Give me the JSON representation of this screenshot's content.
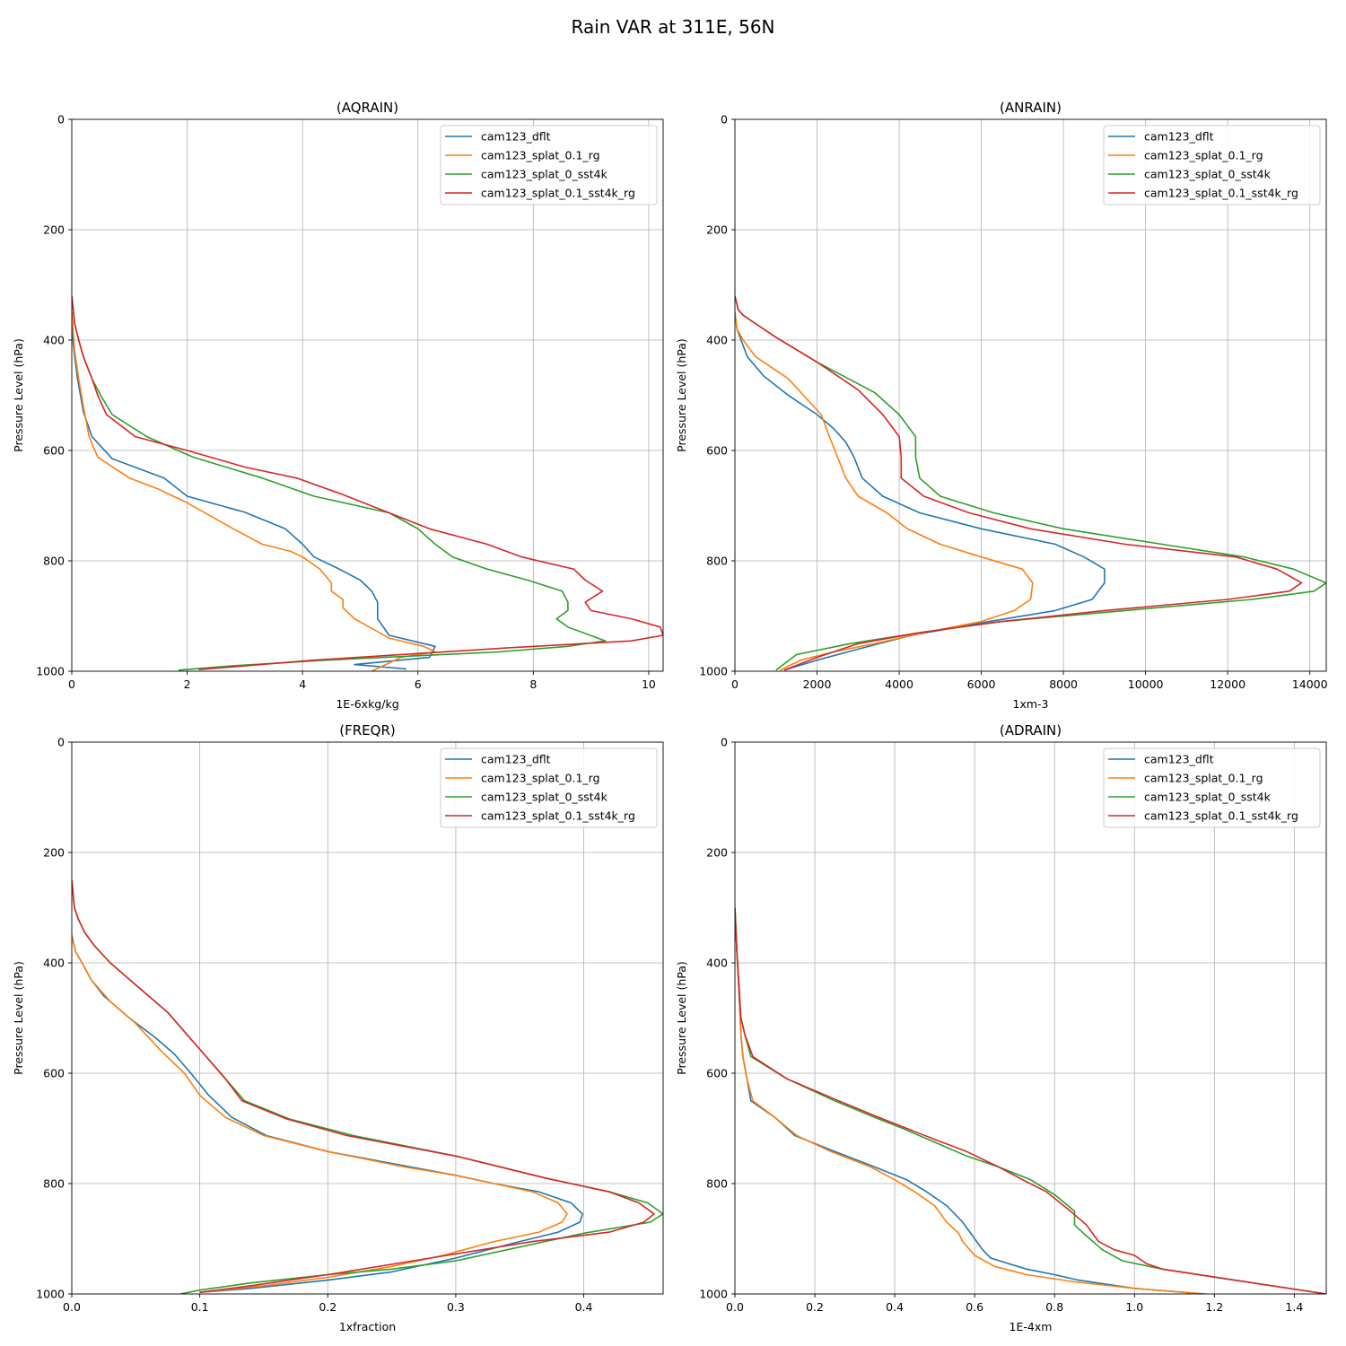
{
  "figure_title": "Rain VAR at 311E, 56N",
  "colors": {
    "cam123_dflt": "#1f77b4",
    "cam123_splat_0.1_rg": "#ff7f0e",
    "cam123_splat_0_sst4k": "#2ca02c",
    "cam123_splat_0.1_sst4k_rg": "#d62728"
  },
  "chart_data": [
    {
      "type": "line",
      "title": "(AQRAIN)",
      "xlabel": "1E-6xkg/kg",
      "ylabel": "Pressure Level (hPa)",
      "xlim": [
        0,
        10.25
      ],
      "ylim": [
        1000,
        0
      ],
      "xticks": [
        0,
        2,
        4,
        6,
        8,
        10
      ],
      "xtick_labels": [
        "0",
        "2",
        "4",
        "6",
        "8",
        "10"
      ],
      "yticks": [
        0,
        200,
        400,
        600,
        800,
        1000
      ],
      "ytick_labels": [
        "0",
        "200",
        "400",
        "600",
        "800",
        "1000"
      ],
      "grid": true,
      "legend_loc": "upper right",
      "series": [
        {
          "name": "cam123_dflt",
          "x": [
            0,
            0.02,
            0.05,
            0.1,
            0.2,
            0.35,
            0.7,
            1.6,
            2.0,
            3.0,
            3.7,
            4.0,
            4.2,
            4.6,
            5.0,
            5.2,
            5.3,
            5.3,
            5.5,
            6.3,
            6.2,
            4.9,
            5.8
          ],
          "y": [
            350,
            400,
            430,
            470,
            530,
            575,
            615,
            650,
            683,
            712,
            742,
            770,
            793,
            813,
            835,
            855,
            875,
            905,
            935,
            955,
            975,
            988,
            996
          ]
        },
        {
          "name": "cam123_splat_0.1_rg",
          "x": [
            0,
            0.05,
            0.12,
            0.2,
            0.3,
            0.45,
            1.0,
            1.5,
            2.0,
            2.8,
            3.3,
            3.8,
            4.0,
            4.3,
            4.5,
            4.5,
            4.7,
            4.7,
            4.9,
            5.5,
            6.1,
            6.3,
            5.7,
            5.2
          ],
          "y": [
            350,
            420,
            470,
            520,
            575,
            612,
            650,
            670,
            695,
            742,
            770,
            783,
            793,
            815,
            840,
            855,
            870,
            885,
            905,
            940,
            955,
            965,
            975,
            1000
          ]
        },
        {
          "name": "cam123_splat_0_sst4k",
          "x": [
            0,
            0.05,
            0.12,
            0.2,
            0.35,
            0.5,
            0.7,
            1.3,
            2.1,
            3.3,
            4.2,
            5.5,
            6.0,
            6.3,
            6.6,
            7.2,
            7.9,
            8.5,
            8.6,
            8.6,
            8.4,
            8.6,
            9.25,
            8.6,
            7.4,
            4.4,
            2.8,
            1.85
          ],
          "y": [
            320,
            370,
            400,
            430,
            470,
            500,
            535,
            575,
            612,
            650,
            683,
            713,
            742,
            770,
            793,
            815,
            835,
            855,
            875,
            890,
            905,
            920,
            945,
            955,
            965,
            980,
            990,
            998
          ]
        },
        {
          "name": "cam123_splat_0.1_sst4k_rg",
          "x": [
            0,
            0.05,
            0.12,
            0.2,
            0.35,
            0.45,
            0.6,
            1.1,
            2.0,
            3.0,
            3.9,
            4.7,
            5.5,
            6.2,
            7.2,
            7.8,
            8.7,
            8.9,
            9.2,
            8.9,
            9.0,
            9.7,
            10.2,
            10.25,
            9.7,
            7.5,
            4.2,
            2.2
          ],
          "y": [
            320,
            370,
            400,
            430,
            470,
            500,
            535,
            575,
            600,
            630,
            650,
            680,
            713,
            742,
            770,
            793,
            815,
            835,
            855,
            875,
            890,
            905,
            920,
            935,
            945,
            958,
            980,
            997
          ]
        }
      ]
    },
    {
      "type": "line",
      "title": "(ANRAIN)",
      "xlabel": "1xm-3",
      "ylabel": "Pressure Level (hPa)",
      "xlim": [
        0,
        14400
      ],
      "ylim": [
        1000,
        0
      ],
      "xticks": [
        0,
        2000,
        4000,
        6000,
        8000,
        10000,
        12000,
        14000
      ],
      "xtick_labels": [
        "0",
        "2000",
        "4000",
        "6000",
        "8000",
        "10000",
        "12000",
        "14000"
      ],
      "yticks": [
        0,
        200,
        400,
        600,
        800,
        1000
      ],
      "ytick_labels": [
        "0",
        "200",
        "400",
        "600",
        "800",
        "1000"
      ],
      "grid": true,
      "legend_loc": "upper right",
      "series": [
        {
          "name": "cam123_dflt",
          "x": [
            0,
            50,
            300,
            700,
            1300,
            2000,
            2400,
            2700,
            2900,
            3100,
            3600,
            4500,
            6000,
            7800,
            8500,
            9000,
            9000,
            8700,
            7800,
            6200,
            4300,
            3000,
            2000,
            1200
          ],
          "y": [
            350,
            380,
            430,
            465,
            500,
            535,
            560,
            585,
            612,
            650,
            683,
            713,
            742,
            770,
            793,
            815,
            840,
            870,
            890,
            910,
            935,
            960,
            980,
            998
          ]
        },
        {
          "name": "cam123_splat_0.1_rg",
          "x": [
            0,
            50,
            200,
            500,
            1300,
            2100,
            2300,
            2500,
            2700,
            3000,
            3700,
            4200,
            5000,
            6000,
            7000,
            7250,
            7200,
            6800,
            6000,
            4600,
            3400,
            2400,
            1600,
            1100
          ],
          "y": [
            350,
            380,
            400,
            430,
            470,
            535,
            575,
            612,
            650,
            683,
            713,
            742,
            770,
            793,
            815,
            840,
            870,
            890,
            910,
            930,
            950,
            965,
            980,
            998
          ]
        },
        {
          "name": "cam123_splat_0_sst4k",
          "x": [
            0,
            80,
            200,
            500,
            1000,
            2000,
            3400,
            4000,
            4400,
            4400,
            4500,
            5000,
            6300,
            8000,
            10400,
            12400,
            13600,
            14400,
            14100,
            12600,
            9500,
            6500,
            4500,
            2800,
            1500,
            1000
          ],
          "y": [
            320,
            345,
            355,
            370,
            395,
            440,
            495,
            535,
            575,
            612,
            650,
            683,
            713,
            742,
            770,
            793,
            815,
            840,
            855,
            870,
            890,
            910,
            930,
            950,
            970,
            998
          ]
        },
        {
          "name": "cam123_splat_0.1_sst4k_rg",
          "x": [
            0,
            80,
            200,
            500,
            1000,
            2000,
            3000,
            3600,
            4000,
            4050,
            4050,
            4600,
            5700,
            7200,
            9500,
            12200,
            13200,
            13800,
            13500,
            12000,
            9000,
            6500,
            4500,
            3000,
            2000,
            1200
          ],
          "y": [
            320,
            345,
            355,
            370,
            395,
            440,
            490,
            535,
            575,
            612,
            650,
            683,
            713,
            742,
            770,
            793,
            815,
            840,
            855,
            870,
            890,
            910,
            930,
            950,
            975,
            998
          ]
        }
      ]
    },
    {
      "type": "line",
      "title": "(FREQR)",
      "xlabel": "1xfraction",
      "ylabel": "Pressure Level (hPa)",
      "xlim": [
        0,
        0.462
      ],
      "ylim": [
        1000,
        0
      ],
      "xticks": [
        0,
        0.1,
        0.2,
        0.3,
        0.4
      ],
      "xtick_labels": [
        "0.0",
        "0.1",
        "0.2",
        "0.3",
        "0.4"
      ],
      "yticks": [
        0,
        200,
        400,
        600,
        800,
        1000
      ],
      "ytick_labels": [
        "0",
        "200",
        "400",
        "600",
        "800",
        "1000"
      ],
      "grid": true,
      "legend_loc": "upper right",
      "series": [
        {
          "name": "cam123_dflt",
          "x": [
            0,
            0.003,
            0.008,
            0.015,
            0.025,
            0.045,
            0.065,
            0.08,
            0.093,
            0.107,
            0.125,
            0.152,
            0.2,
            0.265,
            0.3,
            0.33,
            0.365,
            0.39,
            0.399,
            0.397,
            0.38,
            0.35,
            0.3,
            0.25,
            0.2,
            0.14,
            0.1
          ],
          "y": [
            350,
            380,
            400,
            430,
            460,
            500,
            535,
            565,
            600,
            640,
            680,
            713,
            742,
            770,
            785,
            800,
            815,
            835,
            855,
            870,
            888,
            905,
            935,
            960,
            975,
            990,
            997
          ]
        },
        {
          "name": "cam123_splat_0.1_rg",
          "x": [
            0,
            0.003,
            0.008,
            0.015,
            0.03,
            0.05,
            0.07,
            0.088,
            0.1,
            0.12,
            0.15,
            0.2,
            0.26,
            0.3,
            0.33,
            0.36,
            0.38,
            0.387,
            0.383,
            0.365,
            0.33,
            0.29,
            0.25,
            0.2,
            0.15,
            0.1
          ],
          "y": [
            350,
            380,
            400,
            430,
            470,
            510,
            560,
            600,
            640,
            680,
            713,
            742,
            770,
            785,
            800,
            815,
            835,
            855,
            870,
            888,
            905,
            930,
            950,
            970,
            985,
            997
          ]
        },
        {
          "name": "cam123_splat_0_sst4k",
          "x": [
            0,
            0.002,
            0.005,
            0.01,
            0.018,
            0.03,
            0.05,
            0.075,
            0.09,
            0.105,
            0.12,
            0.135,
            0.17,
            0.22,
            0.3,
            0.37,
            0.42,
            0.45,
            0.462,
            0.452,
            0.4,
            0.3,
            0.25,
            0.2,
            0.14,
            0.1,
            0.085
          ],
          "y": [
            250,
            300,
            320,
            345,
            370,
            400,
            440,
            490,
            530,
            570,
            610,
            650,
            683,
            713,
            750,
            790,
            815,
            835,
            855,
            870,
            890,
            940,
            955,
            965,
            980,
            993,
            1000
          ]
        },
        {
          "name": "cam123_splat_0.1_sst4k_rg",
          "x": [
            0,
            0.002,
            0.005,
            0.01,
            0.018,
            0.03,
            0.05,
            0.075,
            0.09,
            0.105,
            0.12,
            0.133,
            0.168,
            0.215,
            0.3,
            0.37,
            0.42,
            0.443,
            0.455,
            0.447,
            0.42,
            0.36,
            0.28,
            0.2,
            0.14,
            0.1
          ],
          "y": [
            250,
            300,
            320,
            345,
            370,
            400,
            440,
            490,
            530,
            570,
            610,
            650,
            683,
            713,
            750,
            790,
            815,
            835,
            855,
            870,
            888,
            905,
            935,
            965,
            985,
            997
          ]
        }
      ]
    },
    {
      "type": "line",
      "title": "(ADRAIN)",
      "xlabel": "1E-4xm",
      "ylabel": "Pressure Level (hPa)",
      "xlim": [
        0,
        1.48
      ],
      "ylim": [
        1000,
        0
      ],
      "xticks": [
        0,
        0.2,
        0.4,
        0.6,
        0.8,
        1.0,
        1.2,
        1.4
      ],
      "xtick_labels": [
        "0.0",
        "0.2",
        "0.4",
        "0.6",
        "0.8",
        "1.0",
        "1.2",
        "1.4"
      ],
      "yticks": [
        0,
        200,
        400,
        600,
        800,
        1000
      ],
      "ytick_labels": [
        "0",
        "200",
        "400",
        "600",
        "800",
        "1000"
      ],
      "grid": true,
      "legend_loc": "upper right",
      "series": [
        {
          "name": "cam123_dflt",
          "x": [
            0,
            0.005,
            0.01,
            0.015,
            0.02,
            0.03,
            0.04,
            0.1,
            0.15,
            0.25,
            0.35,
            0.43,
            0.48,
            0.53,
            0.57,
            0.6,
            0.62,
            0.64,
            0.73,
            0.8,
            0.86,
            1.0,
            1.14
          ],
          "y": [
            300,
            380,
            450,
            530,
            570,
            610,
            650,
            680,
            713,
            742,
            770,
            793,
            815,
            840,
            870,
            900,
            920,
            935,
            955,
            965,
            975,
            990,
            998
          ]
        },
        {
          "name": "cam123_splat_0.1_rg",
          "x": [
            0,
            0.005,
            0.01,
            0.015,
            0.02,
            0.03,
            0.045,
            0.1,
            0.155,
            0.24,
            0.34,
            0.4,
            0.45,
            0.5,
            0.53,
            0.56,
            0.57,
            0.6,
            0.65,
            0.73,
            0.85,
            1.0,
            1.18
          ],
          "y": [
            300,
            380,
            450,
            530,
            570,
            610,
            650,
            680,
            713,
            742,
            770,
            793,
            815,
            840,
            870,
            890,
            905,
            930,
            950,
            965,
            978,
            990,
            1000
          ]
        },
        {
          "name": "cam123_splat_0_sst4k",
          "x": [
            0,
            0.005,
            0.01,
            0.015,
            0.025,
            0.04,
            0.13,
            0.25,
            0.35,
            0.42,
            0.5,
            0.58,
            0.66,
            0.74,
            0.8,
            0.85,
            0.85,
            0.88,
            0.92,
            0.97,
            1.07,
            1.25,
            1.48
          ],
          "y": [
            300,
            380,
            440,
            500,
            530,
            570,
            610,
            650,
            680,
            700,
            725,
            750,
            770,
            793,
            820,
            850,
            875,
            895,
            920,
            940,
            955,
            975,
            1000
          ]
        },
        {
          "name": "cam123_splat_0.1_sst4k_rg",
          "x": [
            0,
            0.005,
            0.01,
            0.015,
            0.025,
            0.045,
            0.13,
            0.26,
            0.36,
            0.43,
            0.5,
            0.58,
            0.66,
            0.72,
            0.78,
            0.84,
            0.88,
            0.91,
            0.95,
            1.0,
            1.03,
            1.07,
            1.25,
            1.48
          ],
          "y": [
            300,
            380,
            440,
            500,
            530,
            570,
            610,
            650,
            680,
            700,
            720,
            742,
            770,
            793,
            815,
            850,
            875,
            905,
            920,
            930,
            945,
            955,
            975,
            1000
          ]
        }
      ]
    }
  ]
}
